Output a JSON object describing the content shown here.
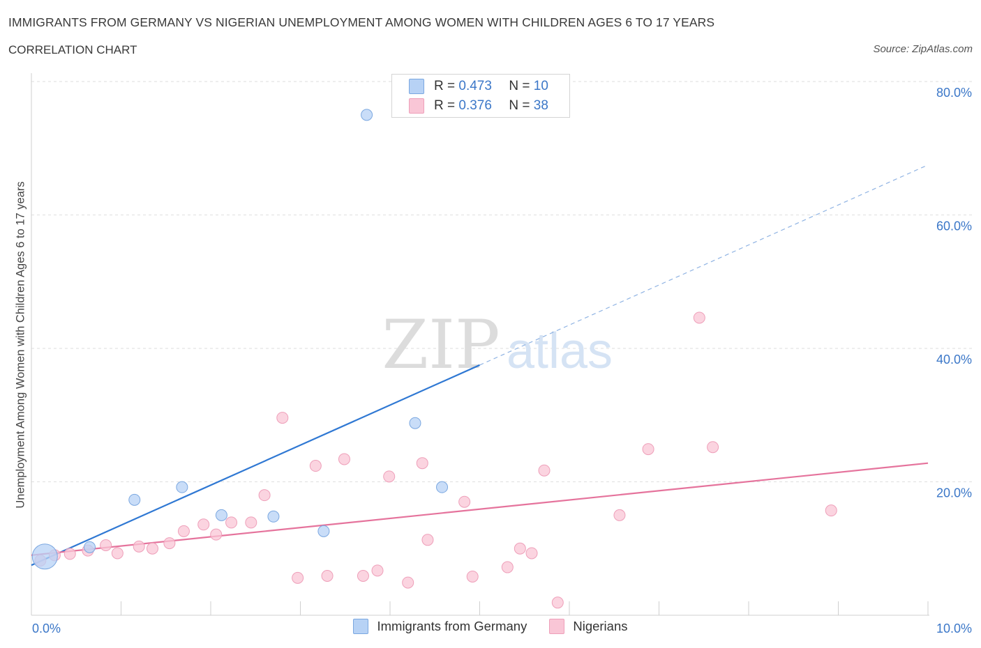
{
  "header": {
    "title": "IMMIGRANTS FROM GERMANY VS NIGERIAN UNEMPLOYMENT AMONG WOMEN WITH CHILDREN AGES 6 TO 17 YEARS",
    "subtitle": "CORRELATION CHART",
    "source": "Source: ZipAtlas.com"
  },
  "watermark": {
    "zip": "ZIP",
    "atlas": "atlas"
  },
  "legend": {
    "rows": [
      {
        "r_label": "R =",
        "r_value": "0.473",
        "n_label": "N =",
        "n_value": "10"
      },
      {
        "r_label": "R =",
        "r_value": "0.376",
        "n_label": "N =",
        "n_value": "38"
      }
    ]
  },
  "chart_data": {
    "type": "scatter",
    "ylabel": "Unemployment Among Women with Children Ages 6 to 17 years",
    "xlim": [
      0,
      10
    ],
    "ylim": [
      0,
      80
    ],
    "x_tick_labels": [
      "0.0%",
      "10.0%"
    ],
    "y_tick_labels": [
      "20.0%",
      "40.0%",
      "60.0%",
      "80.0%"
    ],
    "grid": "horizontal dashed",
    "legend_position": "top-center and bottom",
    "colors": {
      "germany_fill": "#b7d2f5",
      "germany_stroke": "#7aa7e0",
      "germany_line": "#2f78d3",
      "nigeria_fill": "#f9c6d6",
      "nigeria_stroke": "#ee9fb9",
      "nigeria_line": "#e5739c",
      "axis_label": "#3b77c8"
    },
    "series": [
      {
        "name": "Immigrants from Germany",
        "r": 0.473,
        "n": 10,
        "trend": {
          "x": [
            0,
            5
          ],
          "y": [
            7.5,
            37.5
          ],
          "dashed_to": [
            10,
            67.5
          ]
        },
        "points": [
          {
            "x": 0.15,
            "y": 8.8,
            "size": "large"
          },
          {
            "x": 0.65,
            "y": 10.2
          },
          {
            "x": 1.15,
            "y": 17.3
          },
          {
            "x": 1.68,
            "y": 19.2
          },
          {
            "x": 2.12,
            "y": 15.0
          },
          {
            "x": 2.7,
            "y": 14.8
          },
          {
            "x": 3.26,
            "y": 12.6
          },
          {
            "x": 3.74,
            "y": 75.0
          },
          {
            "x": 4.28,
            "y": 28.8
          },
          {
            "x": 4.58,
            "y": 19.2
          }
        ]
      },
      {
        "name": "Nigerians",
        "r": 0.376,
        "n": 38,
        "trend": {
          "x": [
            0,
            10
          ],
          "y": [
            9.0,
            22.8
          ]
        },
        "points": [
          {
            "x": 0.1,
            "y": 8.2
          },
          {
            "x": 0.26,
            "y": 9.0
          },
          {
            "x": 0.43,
            "y": 9.2
          },
          {
            "x": 0.63,
            "y": 9.7
          },
          {
            "x": 0.83,
            "y": 10.5
          },
          {
            "x": 0.96,
            "y": 9.3
          },
          {
            "x": 1.2,
            "y": 10.3
          },
          {
            "x": 1.35,
            "y": 10.0
          },
          {
            "x": 1.54,
            "y": 10.8
          },
          {
            "x": 1.7,
            "y": 12.6
          },
          {
            "x": 1.92,
            "y": 13.6
          },
          {
            "x": 2.06,
            "y": 12.1
          },
          {
            "x": 2.23,
            "y": 13.9
          },
          {
            "x": 2.45,
            "y": 13.9
          },
          {
            "x": 2.6,
            "y": 18.0
          },
          {
            "x": 2.8,
            "y": 29.6
          },
          {
            "x": 2.97,
            "y": 5.6
          },
          {
            "x": 3.17,
            "y": 22.4
          },
          {
            "x": 3.3,
            "y": 5.9
          },
          {
            "x": 3.49,
            "y": 23.4
          },
          {
            "x": 3.7,
            "y": 5.9
          },
          {
            "x": 3.86,
            "y": 6.7
          },
          {
            "x": 3.99,
            "y": 20.8
          },
          {
            "x": 4.2,
            "y": 4.9
          },
          {
            "x": 4.36,
            "y": 22.8
          },
          {
            "x": 4.42,
            "y": 11.3
          },
          {
            "x": 4.83,
            "y": 17.0
          },
          {
            "x": 4.92,
            "y": 5.8
          },
          {
            "x": 5.31,
            "y": 7.2
          },
          {
            "x": 5.45,
            "y": 10.0
          },
          {
            "x": 5.58,
            "y": 9.3
          },
          {
            "x": 5.72,
            "y": 21.7
          },
          {
            "x": 5.87,
            "y": 1.9
          },
          {
            "x": 6.56,
            "y": 15.0
          },
          {
            "x": 6.88,
            "y": 24.9
          },
          {
            "x": 7.45,
            "y": 44.6
          },
          {
            "x": 7.6,
            "y": 25.2
          },
          {
            "x": 8.92,
            "y": 15.7
          }
        ]
      }
    ]
  },
  "bottom_legend": [
    "Immigrants from Germany",
    "Nigerians"
  ]
}
